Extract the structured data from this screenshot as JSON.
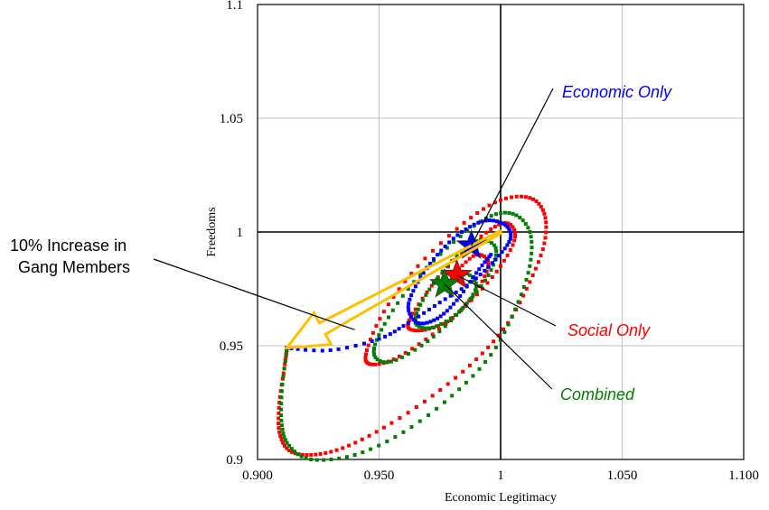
{
  "chart_data": {
    "type": "line",
    "title": "",
    "xlabel": "Economic Legitimacy",
    "ylabel": "Freedoms",
    "xlim": [
      0.9,
      1.1
    ],
    "ylim": [
      0.9,
      1.1
    ],
    "x_ticks": [
      "0.900",
      "0.950",
      "1",
      "1.050",
      "1.100"
    ],
    "y_ticks": [
      "0.9",
      "0.95",
      "1",
      "1.05",
      "1.1"
    ],
    "grid": true,
    "reference_lines": {
      "x": 1,
      "y": 1
    },
    "series": [
      {
        "name": "Economic Only",
        "color": "#0000ff",
        "start_point": {
          "x": 0.988,
          "y": 0.994
        },
        "points": [
          [
            0.912,
            0.949
          ],
          [
            0.93,
            0.948
          ],
          [
            0.95,
            0.953
          ],
          [
            0.962,
            0.96
          ],
          [
            0.975,
            0.969
          ],
          [
            0.988,
            0.978
          ],
          [
            0.998,
            0.988
          ],
          [
            1.004,
            0.997
          ],
          [
            1.002,
            1.003
          ],
          [
            0.994,
            1.005
          ],
          [
            0.984,
            1.0
          ],
          [
            0.974,
            0.99
          ],
          [
            0.966,
            0.978
          ],
          [
            0.962,
            0.967
          ],
          [
            0.966,
            0.96
          ],
          [
            0.974,
            0.962
          ],
          [
            0.982,
            0.97
          ],
          [
            0.99,
            0.982
          ],
          [
            0.996,
            0.99
          ]
        ]
      },
      {
        "name": "Social Only",
        "color": "#ff0000",
        "start_point": {
          "x": 0.982,
          "y": 0.981
        },
        "points": [
          [
            0.912,
            0.948
          ],
          [
            0.911,
            0.94
          ],
          [
            0.909,
            0.925
          ],
          [
            0.909,
            0.912
          ],
          [
            0.913,
            0.904
          ],
          [
            0.922,
            0.902
          ],
          [
            0.935,
            0.905
          ],
          [
            0.952,
            0.914
          ],
          [
            0.972,
            0.928
          ],
          [
            0.99,
            0.944
          ],
          [
            1.003,
            0.96
          ],
          [
            1.012,
            0.978
          ],
          [
            1.018,
            0.995
          ],
          [
            1.018,
            1.008
          ],
          [
            1.012,
            1.015
          ],
          [
            1.0,
            1.014
          ],
          [
            0.985,
            1.004
          ],
          [
            0.966,
            0.985
          ],
          [
            0.952,
            0.965
          ],
          [
            0.945,
            0.948
          ],
          [
            0.946,
            0.942
          ],
          [
            0.956,
            0.944
          ],
          [
            0.972,
            0.955
          ],
          [
            0.988,
            0.97
          ],
          [
            1.0,
            0.985
          ],
          [
            1.006,
            0.998
          ],
          [
            1.002,
            1.004
          ],
          [
            0.992,
            0.998
          ],
          [
            0.976,
            0.982
          ],
          [
            0.965,
            0.966
          ],
          [
            0.962,
            0.958
          ],
          [
            0.969,
            0.957
          ],
          [
            0.98,
            0.962
          ],
          [
            0.99,
            0.974
          ],
          [
            0.995,
            0.986
          ],
          [
            0.99,
            0.99
          ],
          [
            0.982,
            0.983
          ]
        ]
      },
      {
        "name": "Combined",
        "color": "#008000",
        "start_point": {
          "x": 0.977,
          "y": 0.977
        },
        "points": [
          [
            0.912,
            0.948
          ],
          [
            0.91,
            0.93
          ],
          [
            0.91,
            0.915
          ],
          [
            0.913,
            0.906
          ],
          [
            0.922,
            0.9
          ],
          [
            0.94,
            0.902
          ],
          [
            0.96,
            0.912
          ],
          [
            0.98,
            0.928
          ],
          [
            0.996,
            0.946
          ],
          [
            1.006,
            0.966
          ],
          [
            1.012,
            0.985
          ],
          [
            1.012,
            1.0
          ],
          [
            1.005,
            1.008
          ],
          [
            0.994,
            1.006
          ],
          [
            0.978,
            0.993
          ],
          [
            0.962,
            0.975
          ],
          [
            0.951,
            0.957
          ],
          [
            0.948,
            0.946
          ],
          [
            0.955,
            0.943
          ],
          [
            0.97,
            0.952
          ],
          [
            0.984,
            0.966
          ],
          [
            0.995,
            0.981
          ],
          [
            0.998,
            0.993
          ],
          [
            0.99,
            0.996
          ],
          [
            0.978,
            0.985
          ],
          [
            0.968,
            0.97
          ],
          [
            0.965,
            0.96
          ],
          [
            0.972,
            0.958
          ],
          [
            0.983,
            0.965
          ],
          [
            0.99,
            0.976
          ],
          [
            0.985,
            0.982
          ],
          [
            0.977,
            0.977
          ]
        ]
      }
    ],
    "arrow": {
      "from": [
        1.0,
        1.0
      ],
      "to": [
        0.912,
        0.949
      ],
      "color": "#ffc000"
    },
    "annotations": [
      {
        "text": "Economic Only",
        "color": "#0000ff",
        "target": [
          0.988,
          0.994
        ]
      },
      {
        "text": "Social Only",
        "color": "#ff0000",
        "target": [
          0.982,
          0.981
        ]
      },
      {
        "text": "Combined",
        "color": "#008000",
        "target": [
          0.977,
          0.977
        ]
      }
    ],
    "note": {
      "lines": [
        "10% Increase in",
        "Gang Members"
      ],
      "target": [
        0.94,
        0.957
      ]
    }
  }
}
